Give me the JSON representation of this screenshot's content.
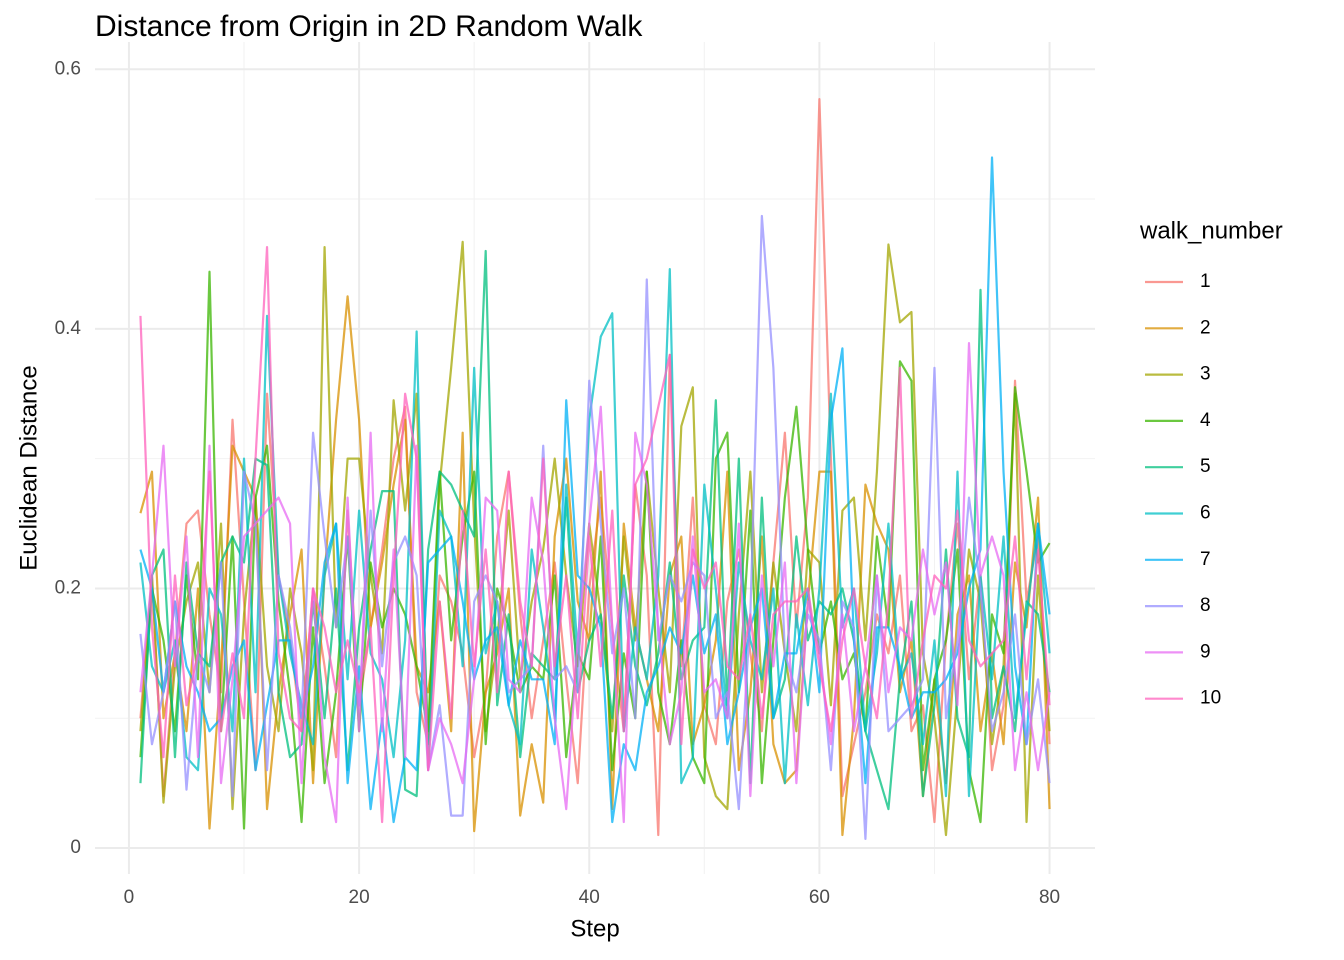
{
  "chart_data": {
    "type": "line",
    "title": "Distance from Origin in 2D Random Walk",
    "x_label": "Step",
    "y_label": "Euclidean Distance",
    "legend_title": "walk_number",
    "xlim": [
      -2.95,
      83.95
    ],
    "ylim": [
      -0.02,
      0.621
    ],
    "xticks": [
      0,
      20,
      40,
      60,
      80
    ],
    "yticks": [
      0.0,
      0.2,
      0.4,
      0.6
    ],
    "x_minor_breaks": [
      10,
      30,
      50,
      70
    ],
    "y_minor_breaks": [
      0.1,
      0.3,
      0.5
    ],
    "grid": true,
    "legend_position": "right",
    "x": [
      1,
      2,
      3,
      4,
      5,
      6,
      7,
      8,
      9,
      10,
      11,
      12,
      13,
      14,
      15,
      16,
      17,
      18,
      19,
      20,
      21,
      22,
      23,
      24,
      25,
      26,
      27,
      28,
      29,
      30,
      31,
      32,
      33,
      34,
      35,
      36,
      37,
      38,
      39,
      40,
      41,
      42,
      43,
      44,
      45,
      46,
      47,
      48,
      49,
      50,
      51,
      52,
      53,
      54,
      55,
      56,
      57,
      58,
      59,
      60,
      61,
      62,
      63,
      64,
      65,
      66,
      67,
      68,
      69,
      70,
      71,
      72,
      73,
      74,
      75,
      76,
      77,
      78,
      79,
      80
    ],
    "series": [
      {
        "name": "1",
        "color": "#F8766D",
        "values": [
          0.1,
          0.21,
          0.04,
          0.15,
          0.25,
          0.26,
          0.18,
          0.12,
          0.33,
          0.19,
          0.06,
          0.35,
          0.21,
          0.16,
          0.09,
          0.2,
          0.14,
          0.07,
          0.26,
          0.11,
          0.17,
          0.23,
          0.3,
          0.34,
          0.12,
          0.08,
          0.21,
          0.19,
          0.15,
          0.07,
          0.12,
          0.24,
          0.29,
          0.18,
          0.1,
          0.16,
          0.22,
          0.13,
          0.05,
          0.2,
          0.27,
          0.17,
          0.09,
          0.28,
          0.21,
          0.01,
          0.38,
          0.14,
          0.27,
          0.11,
          0.08,
          0.19,
          0.23,
          0.15,
          0.09,
          0.22,
          0.32,
          0.17,
          0.27,
          0.577,
          0.3,
          0.04,
          0.08,
          0.12,
          0.18,
          0.15,
          0.21,
          0.09,
          0.11,
          0.02,
          0.16,
          0.25,
          0.13,
          0.21,
          0.06,
          0.11,
          0.36,
          0.19,
          0.24,
          0.08
        ]
      },
      {
        "name": "2",
        "color": "#D89000",
        "values": [
          0.258,
          0.29,
          0.1,
          0.15,
          0.09,
          0.2,
          0.015,
          0.14,
          0.31,
          0.29,
          0.27,
          0.03,
          0.12,
          0.18,
          0.23,
          0.05,
          0.21,
          0.33,
          0.425,
          0.33,
          0.17,
          0.22,
          0.28,
          0.33,
          0.14,
          0.12,
          0.19,
          0.09,
          0.32,
          0.013,
          0.12,
          0.15,
          0.2,
          0.025,
          0.08,
          0.035,
          0.24,
          0.3,
          0.19,
          0.16,
          0.29,
          0.03,
          0.25,
          0.17,
          0.13,
          0.09,
          0.21,
          0.24,
          0.08,
          0.11,
          0.16,
          0.29,
          0.06,
          0.12,
          0.24,
          0.08,
          0.05,
          0.06,
          0.19,
          0.29,
          0.29,
          0.01,
          0.1,
          0.28,
          0.25,
          0.23,
          0.12,
          0.16,
          0.04,
          0.13,
          0.05,
          0.18,
          0.21,
          0.09,
          0.15,
          0.08,
          0.22,
          0.17,
          0.27,
          0.03
        ]
      },
      {
        "name": "3",
        "color": "#A3A500",
        "values": [
          0.09,
          0.21,
          0.035,
          0.14,
          0.19,
          0.22,
          0.12,
          0.25,
          0.03,
          0.18,
          0.27,
          0.14,
          0.09,
          0.2,
          0.15,
          0.06,
          0.463,
          0.17,
          0.3,
          0.3,
          0.21,
          0.15,
          0.345,
          0.26,
          0.35,
          0.08,
          0.28,
          0.37,
          0.467,
          0.25,
          0.09,
          0.16,
          0.26,
          0.13,
          0.19,
          0.23,
          0.3,
          0.21,
          0.14,
          0.25,
          0.18,
          0.09,
          0.24,
          0.16,
          0.29,
          0.2,
          0.12,
          0.325,
          0.355,
          0.07,
          0.04,
          0.03,
          0.18,
          0.29,
          0.12,
          0.22,
          0.15,
          0.09,
          0.23,
          0.22,
          0.11,
          0.26,
          0.27,
          0.16,
          0.29,
          0.465,
          0.405,
          0.413,
          0.15,
          0.1,
          0.01,
          0.12,
          0.23,
          0.19,
          0.08,
          0.14,
          0.35,
          0.02,
          0.21,
          0.09
        ]
      },
      {
        "name": "4",
        "color": "#39B600",
        "values": [
          0.07,
          0.2,
          0.16,
          0.09,
          0.21,
          0.13,
          0.444,
          0.09,
          0.24,
          0.015,
          0.27,
          0.31,
          0.19,
          0.12,
          0.02,
          0.17,
          0.05,
          0.12,
          0.24,
          0.09,
          0.22,
          0.17,
          0.2,
          0.18,
          0.14,
          0.09,
          0.29,
          0.16,
          0.24,
          0.29,
          0.08,
          0.2,
          0.17,
          0.12,
          0.14,
          0.13,
          0.21,
          0.07,
          0.15,
          0.13,
          0.24,
          0.06,
          0.15,
          0.1,
          0.29,
          0.12,
          0.08,
          0.16,
          0.07,
          0.05,
          0.3,
          0.32,
          0.12,
          0.26,
          0.05,
          0.16,
          0.27,
          0.34,
          0.23,
          0.15,
          0.19,
          0.13,
          0.15,
          0.09,
          0.24,
          0.17,
          0.375,
          0.36,
          0.06,
          0.13,
          0.16,
          0.23,
          0.06,
          0.02,
          0.18,
          0.15,
          0.355,
          0.29,
          0.22,
          0.235
        ]
      },
      {
        "name": "5",
        "color": "#00BF7D",
        "values": [
          0.05,
          0.21,
          0.23,
          0.07,
          0.22,
          0.15,
          0.14,
          0.22,
          0.24,
          0.22,
          0.3,
          0.295,
          0.12,
          0.07,
          0.08,
          0.19,
          0.1,
          0.2,
          0.06,
          0.17,
          0.23,
          0.275,
          0.275,
          0.045,
          0.04,
          0.23,
          0.29,
          0.28,
          0.26,
          0.24,
          0.46,
          0.11,
          0.18,
          0.07,
          0.15,
          0.14,
          0.13,
          0.27,
          0.12,
          0.16,
          0.18,
          0.1,
          0.21,
          0.14,
          0.11,
          0.15,
          0.22,
          0.13,
          0.16,
          0.17,
          0.345,
          0.11,
          0.3,
          0.05,
          0.27,
          0.1,
          0.13,
          0.24,
          0.16,
          0.19,
          0.18,
          0.2,
          0.16,
          0.09,
          0.06,
          0.03,
          0.13,
          0.19,
          0.04,
          0.11,
          0.23,
          0.1,
          0.07,
          0.43,
          0.1,
          0.14,
          0.09,
          0.19,
          0.18,
          0.12
        ]
      },
      {
        "name": "6",
        "color": "#00BFC4",
        "values": [
          0.22,
          0.14,
          0.12,
          0.16,
          0.07,
          0.06,
          0.2,
          0.18,
          0.09,
          0.3,
          0.12,
          0.41,
          0.21,
          0.15,
          0.11,
          0.08,
          0.21,
          0.25,
          0.13,
          0.26,
          0.15,
          0.13,
          0.07,
          0.16,
          0.398,
          0.06,
          0.26,
          0.24,
          0.14,
          0.37,
          0.15,
          0.19,
          0.11,
          0.08,
          0.23,
          0.17,
          0.1,
          0.28,
          0.15,
          0.33,
          0.394,
          0.412,
          0.09,
          0.17,
          0.13,
          0.21,
          0.446,
          0.05,
          0.07,
          0.28,
          0.2,
          0.1,
          0.22,
          0.16,
          0.13,
          0.2,
          0.05,
          0.18,
          0.11,
          0.2,
          0.35,
          0.17,
          0.2,
          0.09,
          0.15,
          0.25,
          0.13,
          0.15,
          0.08,
          0.16,
          0.04,
          0.29,
          0.04,
          0.21,
          0.13,
          0.24,
          0.1,
          0.18,
          0.25,
          0.15
        ]
      },
      {
        "name": "7",
        "color": "#00B0F6",
        "values": [
          0.23,
          0.2,
          0.12,
          0.19,
          0.14,
          0.12,
          0.09,
          0.1,
          0.14,
          0.16,
          0.06,
          0.11,
          0.16,
          0.16,
          0.1,
          0.14,
          0.22,
          0.25,
          0.05,
          0.14,
          0.03,
          0.1,
          0.02,
          0.07,
          0.06,
          0.22,
          0.23,
          0.24,
          0.19,
          0.13,
          0.16,
          0.17,
          0.11,
          0.16,
          0.13,
          0.13,
          0.08,
          0.345,
          0.21,
          0.2,
          0.17,
          0.02,
          0.08,
          0.06,
          0.12,
          0.14,
          0.17,
          0.15,
          0.21,
          0.15,
          0.18,
          0.08,
          0.12,
          0.17,
          0.2,
          0.1,
          0.15,
          0.15,
          0.2,
          0.12,
          0.33,
          0.385,
          0.16,
          0.05,
          0.17,
          0.17,
          0.14,
          0.1,
          0.12,
          0.12,
          0.13,
          0.15,
          0.2,
          0.23,
          0.532,
          0.29,
          0.14,
          0.08,
          0.25,
          0.18
        ]
      },
      {
        "name": "8",
        "color": "#9590FF",
        "values": [
          0.165,
          0.08,
          0.12,
          0.19,
          0.045,
          0.15,
          0.12,
          0.22,
          0.04,
          0.29,
          0.25,
          0.06,
          0.21,
          0.17,
          0.1,
          0.32,
          0.24,
          0.17,
          0.24,
          0.11,
          0.26,
          0.14,
          0.22,
          0.24,
          0.21,
          0.06,
          0.11,
          0.025,
          0.025,
          0.19,
          0.21,
          0.19,
          0.12,
          0.13,
          0.14,
          0.31,
          0.13,
          0.14,
          0.12,
          0.36,
          0.25,
          0.15,
          0.2,
          0.1,
          0.438,
          0.16,
          0.21,
          0.19,
          0.22,
          0.21,
          0.1,
          0.12,
          0.03,
          0.18,
          0.487,
          0.37,
          0.15,
          0.12,
          0.18,
          0.16,
          0.06,
          0.19,
          0.17,
          0.007,
          0.21,
          0.09,
          0.1,
          0.11,
          0.13,
          0.37,
          0.1,
          0.16,
          0.27,
          0.2,
          0.09,
          0.12,
          0.18,
          0.08,
          0.13,
          0.05
        ]
      },
      {
        "name": "9",
        "color": "#E76BF3",
        "values": [
          0.12,
          0.21,
          0.31,
          0.14,
          0.24,
          0.07,
          0.31,
          0.05,
          0.13,
          0.24,
          0.25,
          0.26,
          0.27,
          0.25,
          0.05,
          0.2,
          0.07,
          0.02,
          0.27,
          0.09,
          0.32,
          0.09,
          0.23,
          0.07,
          0.31,
          0.06,
          0.1,
          0.08,
          0.05,
          0.13,
          0.27,
          0.26,
          0.13,
          0.12,
          0.27,
          0.22,
          0.1,
          0.03,
          0.16,
          0.25,
          0.34,
          0.17,
          0.02,
          0.32,
          0.28,
          0.17,
          0.08,
          0.12,
          0.24,
          0.12,
          0.13,
          0.1,
          0.25,
          0.04,
          0.21,
          0.14,
          0.22,
          0.05,
          0.19,
          0.15,
          0.08,
          0.18,
          0.09,
          0.14,
          0.21,
          0.12,
          0.17,
          0.16,
          0.23,
          0.18,
          0.22,
          0.11,
          0.389,
          0.21,
          0.24,
          0.21,
          0.06,
          0.12,
          0.06,
          0.12
        ]
      },
      {
        "name": "10",
        "color": "#FF62BC",
        "values": [
          0.41,
          0.17,
          0.07,
          0.21,
          0.11,
          0.15,
          0.29,
          0.09,
          0.15,
          0.1,
          0.3,
          0.463,
          0.15,
          0.1,
          0.09,
          0.2,
          0.17,
          0.12,
          0.16,
          0.12,
          0.17,
          0.02,
          0.21,
          0.35,
          0.3,
          0.06,
          0.19,
          0.1,
          0.26,
          0.14,
          0.23,
          0.12,
          0.29,
          0.19,
          0.14,
          0.3,
          0.14,
          0.21,
          0.1,
          0.24,
          0.14,
          0.26,
          0.09,
          0.28,
          0.3,
          0.34,
          0.38,
          0.08,
          0.23,
          0.2,
          0.22,
          0.14,
          0.13,
          0.18,
          0.1,
          0.18,
          0.19,
          0.19,
          0.2,
          0.14,
          0.09,
          0.16,
          0.2,
          0.14,
          0.1,
          0.19,
          0.37,
          0.1,
          0.16,
          0.21,
          0.2,
          0.26,
          0.16,
          0.14,
          0.15,
          0.16,
          0.24,
          0.13,
          0.23,
          0.11
        ]
      }
    ]
  }
}
